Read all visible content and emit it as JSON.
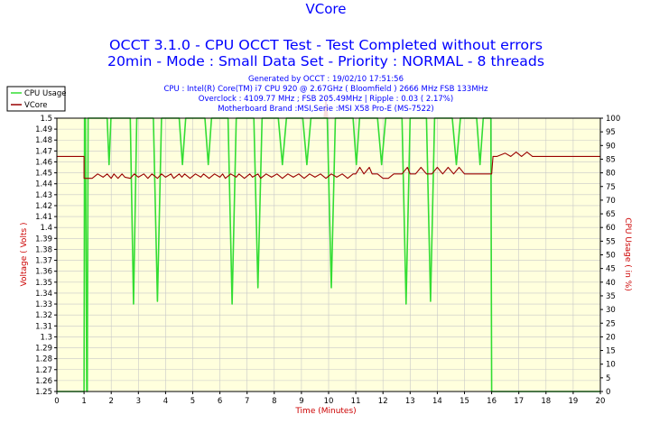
{
  "chart_data": {
    "type": "line",
    "title": "VCore",
    "subtitle_1": "OCCT 3.1.0 - CPU OCCT Test - Test Completed without errors",
    "subtitle_2": "20min - Mode : Small Data Set - Priority : NORMAL - 8 threads",
    "info_lines": [
      "Generated by OCCT : 19/02/10 17:51:56",
      "CPU : Intel(R) Core(TM) i7 CPU 920 @ 2.67GHz ( Bloomfield ) 2666 MHz FSB 133MHz",
      "Overclock : 4109.77 MHz ; FSB 205.49MHz | Ripple : 0.03 ( 2.17%)",
      "Motherboard Brand :MSI,Serie :MSI X58 Pro-E (MS-7522)"
    ],
    "xlabel": "Time (Minutes)",
    "ylabel": "Voltage ( Volts )",
    "ylabel_right": "CPU Usage ( in %)",
    "xlim": [
      0,
      20
    ],
    "ylim": [
      1.25,
      1.5
    ],
    "ylim_right": [
      0,
      100
    ],
    "x_ticks": [
      "0",
      "1",
      "2",
      "3",
      "4",
      "5",
      "6",
      "7",
      "8",
      "9",
      "10",
      "11",
      "12",
      "13",
      "14",
      "15",
      "16",
      "17",
      "18",
      "19",
      "20"
    ],
    "y_ticks": [
      "1.25",
      "1.26",
      "1.27",
      "1.28",
      "1.29",
      "1.3",
      "1.31",
      "1.32",
      "1.33",
      "1.34",
      "1.35",
      "1.36",
      "1.37",
      "1.38",
      "1.39",
      "1.4",
      "1.41",
      "1.42",
      "1.43",
      "1.44",
      "1.45",
      "1.46",
      "1.47",
      "1.48",
      "1.49",
      "1.5"
    ],
    "y_ticks_right": [
      "0",
      "5",
      "10",
      "15",
      "20",
      "25",
      "30",
      "35",
      "40",
      "45",
      "50",
      "55",
      "60",
      "65",
      "70",
      "75",
      "80",
      "85",
      "90",
      "95",
      "100"
    ],
    "legend": [
      "CPU Usage",
      "VCore"
    ],
    "colors": {
      "cpu_usage": "#33dd33",
      "vcore": "#990000",
      "background": "#ffffdd",
      "grid": "#c8c8c8",
      "title": "#0000ff",
      "axis_label": "#cc0000"
    },
    "series": [
      {
        "name": "CPU Usage",
        "axis": "right",
        "x": [
          0,
          1.0,
          1.02,
          1.05,
          1.1,
          1.12,
          1.15,
          1.85,
          1.92,
          1.99,
          2.7,
          2.82,
          2.94,
          3.55,
          3.7,
          3.85,
          4.5,
          4.62,
          4.74,
          5.45,
          5.57,
          5.69,
          6.3,
          6.45,
          6.6,
          7.25,
          7.4,
          7.55,
          8.15,
          8.3,
          8.45,
          9.05,
          9.2,
          9.35,
          9.95,
          10.1,
          10.25,
          10.9,
          11.02,
          11.14,
          11.8,
          11.95,
          12.1,
          12.7,
          12.85,
          13.0,
          13.6,
          13.75,
          13.9,
          14.55,
          14.7,
          14.85,
          15.45,
          15.57,
          15.69,
          15.97,
          16.0,
          16.05,
          16.1,
          20
        ],
        "values": [
          0,
          0,
          100,
          100,
          0,
          0,
          100,
          100,
          83,
          100,
          100,
          32,
          100,
          100,
          33,
          100,
          100,
          83,
          100,
          100,
          83,
          100,
          100,
          32,
          100,
          100,
          38,
          100,
          100,
          83,
          100,
          100,
          83,
          100,
          100,
          38,
          100,
          100,
          83,
          100,
          100,
          83,
          100,
          100,
          32,
          100,
          100,
          33,
          100,
          100,
          83,
          100,
          100,
          83,
          100,
          100,
          0,
          0,
          0,
          0
        ]
      },
      {
        "name": "VCore",
        "axis": "left",
        "x": [
          0,
          1.0,
          1.0,
          1.3,
          1.5,
          1.7,
          1.85,
          2.0,
          2.1,
          2.25,
          2.4,
          2.5,
          2.7,
          2.85,
          3.0,
          3.2,
          3.35,
          3.5,
          3.7,
          3.85,
          4.0,
          4.2,
          4.3,
          4.5,
          4.6,
          4.7,
          4.9,
          5.1,
          5.3,
          5.4,
          5.6,
          5.8,
          6.0,
          6.1,
          6.2,
          6.4,
          6.6,
          6.7,
          6.9,
          7.1,
          7.2,
          7.4,
          7.5,
          7.7,
          7.9,
          8.1,
          8.3,
          8.5,
          8.7,
          8.9,
          9.1,
          9.3,
          9.5,
          9.7,
          9.9,
          10.1,
          10.3,
          10.5,
          10.7,
          10.9,
          11.0,
          11.15,
          11.3,
          11.5,
          11.6,
          11.8,
          12.0,
          12.2,
          12.4,
          12.5,
          12.7,
          12.9,
          13.0,
          13.2,
          13.4,
          13.6,
          13.8,
          14.0,
          14.2,
          14.4,
          14.6,
          14.8,
          15.0,
          15.5,
          16.0,
          16.05,
          16.2,
          16.5,
          16.7,
          16.9,
          17.1,
          17.3,
          17.5,
          17.55,
          20
        ],
        "values": [
          1.465,
          1.465,
          1.445,
          1.445,
          1.449,
          1.446,
          1.449,
          1.445,
          1.449,
          1.445,
          1.449,
          1.446,
          1.445,
          1.449,
          1.446,
          1.449,
          1.445,
          1.449,
          1.445,
          1.449,
          1.446,
          1.449,
          1.445,
          1.449,
          1.446,
          1.449,
          1.445,
          1.449,
          1.446,
          1.449,
          1.445,
          1.449,
          1.446,
          1.449,
          1.445,
          1.449,
          1.446,
          1.449,
          1.445,
          1.449,
          1.446,
          1.449,
          1.445,
          1.449,
          1.446,
          1.449,
          1.445,
          1.449,
          1.446,
          1.449,
          1.445,
          1.449,
          1.446,
          1.449,
          1.445,
          1.449,
          1.446,
          1.449,
          1.445,
          1.449,
          1.449,
          1.455,
          1.449,
          1.455,
          1.449,
          1.449,
          1.445,
          1.445,
          1.449,
          1.449,
          1.449,
          1.455,
          1.449,
          1.449,
          1.455,
          1.449,
          1.449,
          1.455,
          1.449,
          1.455,
          1.449,
          1.455,
          1.449,
          1.449,
          1.449,
          1.465,
          1.465,
          1.468,
          1.465,
          1.469,
          1.465,
          1.469,
          1.465,
          1.465,
          1.465
        ]
      }
    ]
  }
}
